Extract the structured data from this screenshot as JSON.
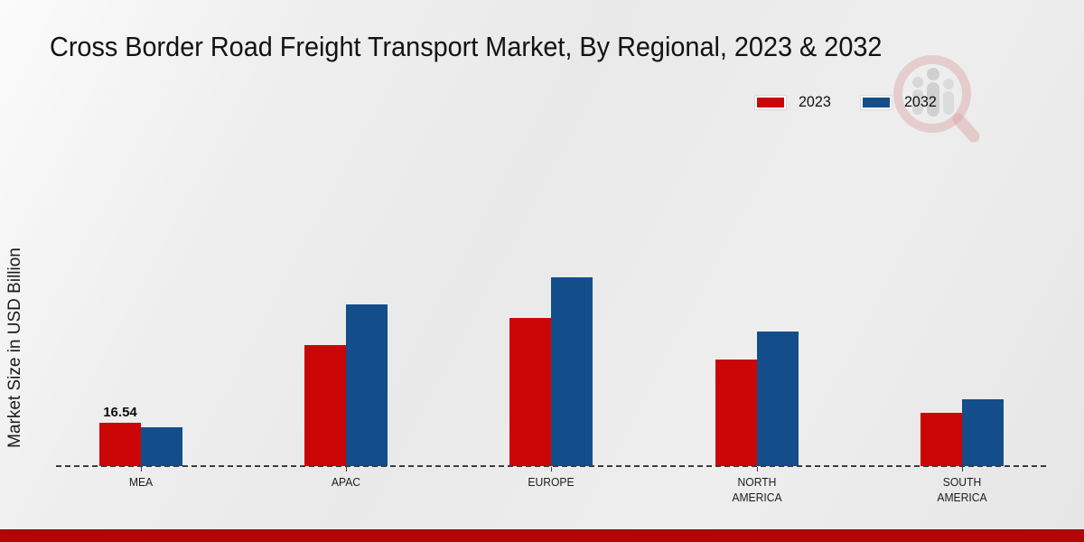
{
  "title": "Cross Border Road Freight Transport Market, By Regional, 2023 & 2032",
  "ylabel": "Market Size in USD Billion",
  "legend": [
    {
      "label": "2023",
      "color": "#cc0606"
    },
    {
      "label": "2032",
      "color": "#134e8b"
    }
  ],
  "colors": {
    "series_2023": "#cc0606",
    "series_2032": "#134e8b",
    "baseline": "#3c3c3c",
    "footer_band": "#b30505",
    "background": "#ececec",
    "watermark_ring": "#d98080",
    "watermark_figures": "#ababab"
  },
  "watermark_icon": "magnifier-people-logo",
  "chart_data": {
    "type": "bar",
    "categories": [
      "MEA",
      "APAC",
      "EUROPE",
      "NORTH AMERICA",
      "SOUTH AMERICA"
    ],
    "series": [
      {
        "name": "2023",
        "color": "#cc0606",
        "values": [
          16.54,
          46.2,
          56.6,
          40.8,
          20.3
        ]
      },
      {
        "name": "2032",
        "color": "#134e8b",
        "values": [
          14.8,
          61.7,
          71.9,
          51.3,
          25.4
        ]
      }
    ],
    "annotations": [
      {
        "category": "MEA",
        "series": "2023",
        "text": "16.54"
      }
    ],
    "title": "Cross Border Road Freight Transport Market, By Regional, 2023 & 2032",
    "xlabel": "",
    "ylabel": "Market Size in USD Billion",
    "ylim": [
      0,
      80
    ],
    "grid": false,
    "y_axis_ticks_visible": false,
    "baseline_style": "dashed",
    "legend_position": "top-right",
    "units": "USD Billion"
  }
}
